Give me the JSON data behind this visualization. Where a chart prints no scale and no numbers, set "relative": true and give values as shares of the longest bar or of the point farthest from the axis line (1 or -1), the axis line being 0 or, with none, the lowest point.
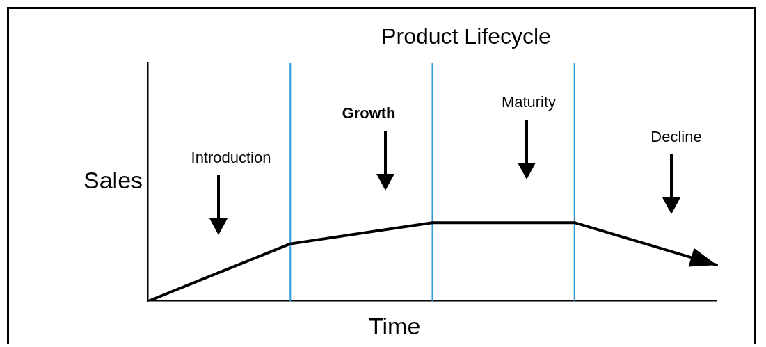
{
  "chart_data": {
    "type": "line",
    "title": "Product Lifecycle",
    "xlabel": "Time",
    "ylabel": "Sales",
    "categories": [
      null,
      null,
      null,
      null,
      null
    ],
    "series": [
      {
        "color": "#000000",
        "values": [
          0,
          0.73,
          1,
          1,
          0.46
        ]
      }
    ],
    "relative": true,
    "grid": "x",
    "legend": false,
    "marker": "none",
    "line_style": "solid",
    "annotations": [
      "Introduction",
      "Growth",
      "Maturity",
      "Decline"
    ]
  }
}
